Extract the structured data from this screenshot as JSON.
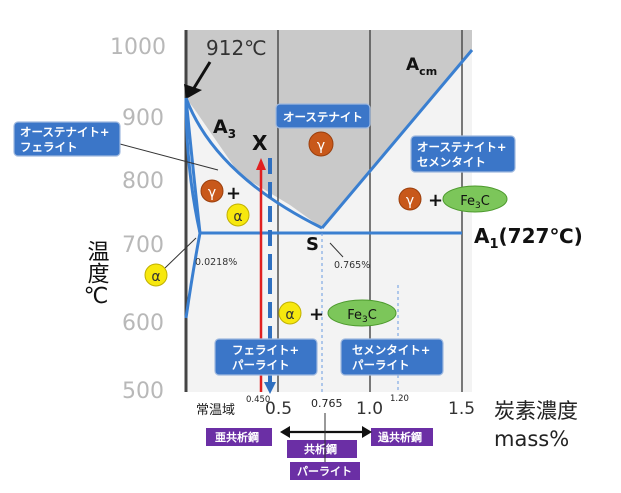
{
  "title": "912℃",
  "y_axis": {
    "label": "温度℃",
    "ticks": [
      "1000",
      "900",
      "800",
      "700",
      "600",
      "500"
    ]
  },
  "x_axis": {
    "label_line1": "炭素濃度",
    "label_line2": "mass%",
    "ticks": [
      "0.5",
      "1.0",
      "1.5"
    ],
    "room_temp": "常温域"
  },
  "lines": {
    "a3": "A",
    "a3_sub": "3",
    "acm": "A",
    "acm_sub": "cm",
    "a1": "A",
    "a1_sub": "1",
    "a1_temp": "(727℃)"
  },
  "points": {
    "x": "X",
    "s": "S",
    "s_pct": "0.765%",
    "alpha_pct": "0.0218%",
    "x_val": "0.450",
    "s_val": "0.765",
    "x120": "1.20"
  },
  "phases": {
    "austenite": "オーステナイト",
    "aus_ferrite_1": "オーステナイト+",
    "aus_ferrite_2": "フェライト",
    "aus_cementite_1": "オーステナイト+",
    "aus_cementite_2": "セメンタイト",
    "ferrite_pearlite_1": "フェライト+",
    "ferrite_pearlite_2": "パーライト",
    "cementite_pearlite_1": "セメンタイト+",
    "cementite_pearlite_2": "パーライト"
  },
  "symbols": {
    "gamma": "γ",
    "alpha": "α",
    "plus": "+",
    "fe3c_fe": "Fe",
    "fe3c_sub": "3",
    "fe3c_c": "C"
  },
  "steel_types": {
    "hypo": "亜共析鋼",
    "eutectoid": "共析鋼",
    "hyper": "過共析鋼",
    "pearlite": "パーライト"
  }
}
